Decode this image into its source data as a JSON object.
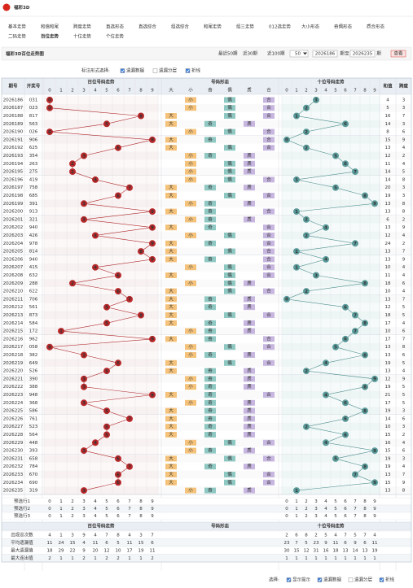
{
  "header": {
    "logo": "福彩3D"
  },
  "nav": [
    [
      "基本走势",
      "和值和尾",
      "跨度走势",
      "直选形态",
      "直选综合",
      "组选综合",
      "和尾走势",
      "组三走势",
      "012选走势",
      "大小形态",
      "奇偶形态",
      "质合形态"
    ],
    [
      "二码走势",
      "百位走势",
      "十位走势",
      "个位走势"
    ]
  ],
  "title": "福彩3D百位走势图",
  "range": {
    "recent": [
      "最近50期",
      "近30期",
      "近100期"
    ],
    "select": "50",
    "from": "2026186",
    "from_unit": "期",
    "to_label": "至",
    "to": "2026235",
    "to_unit": "期",
    "button": "查看"
  },
  "options": {
    "label": "标注形式选择:",
    "items": [
      "遗漏数据",
      "遗漏分层",
      "折线"
    ],
    "checked": [
      true,
      false,
      true
    ]
  },
  "table": {
    "headers": {
      "issue": "期号",
      "code": "开奖号",
      "hundreds": "百位号码走势",
      "forms": "号码形态",
      "tens": "十位号码走势",
      "sum": "和值",
      "span": "跨度"
    },
    "digits": [
      0,
      1,
      2,
      3,
      4,
      5,
      6,
      7,
      8,
      9
    ],
    "form_labels": [
      "大",
      "小",
      "奇",
      "偶",
      "质",
      "合"
    ],
    "rows": [
      [
        "2026186",
        "031",
        0,
        3,
        4,
        3
      ],
      [
        "2026187",
        "023",
        0,
        2,
        5,
        3
      ],
      [
        "2026188",
        "817",
        8,
        1,
        16,
        7
      ],
      [
        "2026189",
        "563",
        5,
        6,
        14,
        3
      ],
      [
        "2026190",
        "026",
        0,
        2,
        8,
        6
      ],
      [
        "2026191",
        "906",
        9,
        0,
        15,
        9
      ],
      [
        "2026192",
        "625",
        6,
        2,
        13,
        4
      ],
      [
        "2026193",
        "354",
        3,
        5,
        12,
        2
      ],
      [
        "2026194",
        "263",
        2,
        6,
        11,
        4
      ],
      [
        "2026195",
        "275",
        2,
        7,
        14,
        5
      ],
      [
        "2026196",
        "419",
        4,
        1,
        14,
        8
      ],
      [
        "2026197",
        "758",
        7,
        5,
        20,
        3
      ],
      [
        "2026198",
        "685",
        6,
        8,
        19,
        3
      ],
      [
        "2026199",
        "391",
        3,
        9,
        13,
        8
      ],
      [
        "2026200",
        "913",
        9,
        1,
        13,
        8
      ],
      [
        "2026201",
        "321",
        3,
        2,
        6,
        2
      ],
      [
        "2026202",
        "940",
        9,
        4,
        13,
        9
      ],
      [
        "2026203",
        "426",
        4,
        2,
        12,
        4
      ],
      [
        "2026204",
        "978",
        9,
        7,
        24,
        2
      ],
      [
        "2026205",
        "814",
        8,
        1,
        13,
        7
      ],
      [
        "2026206",
        "940",
        9,
        4,
        13,
        9
      ],
      [
        "2026207",
        "415",
        4,
        1,
        10,
        4
      ],
      [
        "2026208",
        "632",
        6,
        3,
        11,
        4
      ],
      [
        "2026209",
        "288",
        2,
        8,
        18,
        6
      ],
      [
        "2026210",
        "622",
        6,
        2,
        10,
        4
      ],
      [
        "2026211",
        "706",
        7,
        0,
        13,
        7
      ],
      [
        "2026212",
        "561",
        5,
        6,
        12,
        5
      ],
      [
        "2026213",
        "873",
        8,
        7,
        18,
        5
      ],
      [
        "2026214",
        "584",
        5,
        8,
        17,
        4
      ],
      [
        "2026215",
        "172",
        1,
        7,
        10,
        6
      ],
      [
        "2026216",
        "962",
        9,
        6,
        17,
        7
      ],
      [
        "2026217",
        "058",
        0,
        5,
        13,
        8
      ],
      [
        "2026218",
        "382",
        3,
        8,
        13,
        6
      ],
      [
        "2026219",
        "649",
        6,
        4,
        19,
        5
      ],
      [
        "2026220",
        "526",
        5,
        2,
        13,
        4
      ],
      [
        "2026221",
        "390",
        3,
        9,
        12,
        9
      ],
      [
        "2026222",
        "388",
        3,
        8,
        19,
        5
      ],
      [
        "2026223",
        "948",
        9,
        4,
        21,
        5
      ],
      [
        "2026224",
        "368",
        3,
        6,
        17,
        5
      ],
      [
        "2026225",
        "586",
        5,
        8,
        19,
        3
      ],
      [
        "2026226",
        "761",
        7,
        6,
        14,
        6
      ],
      [
        "2026227",
        "523",
        5,
        2,
        10,
        3
      ],
      [
        "2026228",
        "564",
        5,
        6,
        15,
        2
      ],
      [
        "2026229",
        "448",
        4,
        4,
        16,
        4
      ],
      [
        "2026230",
        "393",
        3,
        9,
        15,
        6
      ],
      [
        "2026231",
        "658",
        6,
        5,
        19,
        3
      ],
      [
        "2026232",
        "784",
        7,
        8,
        19,
        4
      ],
      [
        "2026233",
        "670",
        6,
        7,
        13,
        7
      ],
      [
        "2026234",
        "690",
        6,
        9,
        15,
        9
      ],
      [
        "2026235",
        "319",
        3,
        1,
        13,
        8
      ]
    ],
    "preselect": [
      "预选行1",
      "预选行2",
      "预选行3"
    ],
    "stats": [
      {
        "label": "出现总次数",
        "hundreds": [
          4,
          1,
          3,
          9,
          4,
          7,
          8,
          4,
          3,
          7
        ],
        "tens": [
          2,
          6,
          8,
          2,
          5,
          4,
          7,
          5,
          7,
          4
        ]
      },
      {
        "label": "平均遗漏值",
        "hundreds": [
          11,
          24,
          15,
          4,
          11,
          6,
          5,
          11,
          15,
          6
        ],
        "tens": [
          23,
          7,
          5,
          23,
          9,
          11,
          6,
          9,
          6,
          11
        ]
      },
      {
        "label": "最大遗漏值",
        "hundreds": [
          18,
          29,
          22,
          9,
          20,
          12,
          10,
          17,
          19,
          11
        ],
        "tens": [
          30,
          15,
          12,
          31,
          16,
          18,
          13,
          14,
          13,
          19
        ]
      },
      {
        "label": "最大连出值",
        "hundreds": [
          2,
          1,
          1,
          2,
          1,
          2,
          2,
          1,
          1,
          2
        ],
        "tens": [
          1,
          1,
          1,
          1,
          1,
          1,
          1,
          1,
          1,
          1
        ]
      }
    ]
  },
  "footer": {
    "label": "选择:",
    "items": [
      "显示提示",
      "遗漏数据",
      "遗漏分层",
      "折线"
    ],
    "checked": [
      true,
      true,
      false,
      true
    ]
  }
}
